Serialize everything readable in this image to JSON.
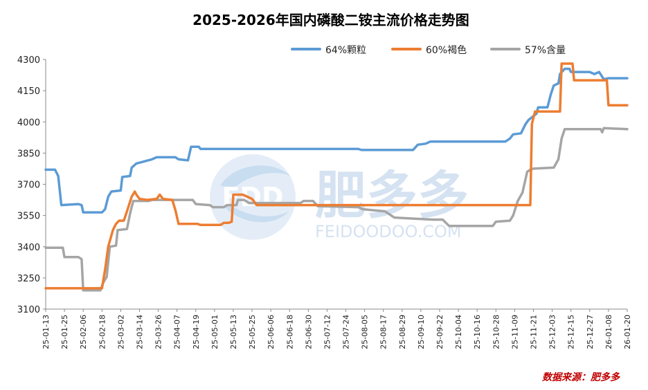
{
  "chart_data": {
    "type": "line",
    "title": "2025-2026年国内磷酸二铵主流价格走势图",
    "xlabel": "",
    "ylabel": "",
    "ylim": [
      3100,
      4300
    ],
    "yticks": [
      3100,
      3250,
      3400,
      3550,
      3700,
      3850,
      4000,
      4150,
      4300
    ],
    "x_tick_labels": [
      "25-01-13",
      "25-01-25",
      "25-02-06",
      "25-02-18",
      "25-03-02",
      "25-03-14",
      "25-03-26",
      "25-04-07",
      "25-04-19",
      "25-05-01",
      "25-05-13",
      "25-05-25",
      "25-06-06",
      "25-06-18",
      "25-06-30",
      "25-07-12",
      "25-07-24",
      "25-08-05",
      "25-08-17",
      "25-08-29",
      "25-09-10",
      "25-09-22",
      "25-10-04",
      "25-10-16",
      "25-10-28",
      "25-11-09",
      "25-11-21",
      "25-12-03",
      "25-12-15",
      "25-12-27",
      "26-01-08",
      "26-01-20"
    ],
    "legend_position": "top-right",
    "grid": false,
    "series": [
      {
        "name": "64%颗粒",
        "color": "#5B9BD5",
        "points": [
          [
            "25-01-13",
            3770
          ],
          [
            "25-01-19",
            3770
          ],
          [
            "25-01-21",
            3740
          ],
          [
            "25-01-23",
            3600
          ],
          [
            "25-02-03",
            3605
          ],
          [
            "25-02-05",
            3600
          ],
          [
            "25-02-06",
            3565
          ],
          [
            "25-02-18",
            3565
          ],
          [
            "25-02-20",
            3580
          ],
          [
            "25-02-22",
            3640
          ],
          [
            "25-02-24",
            3665
          ],
          [
            "25-03-02",
            3670
          ],
          [
            "25-03-03",
            3735
          ],
          [
            "25-03-08",
            3740
          ],
          [
            "25-03-09",
            3780
          ],
          [
            "25-03-12",
            3800
          ],
          [
            "25-03-17",
            3810
          ],
          [
            "25-03-22",
            3820
          ],
          [
            "25-03-25",
            3830
          ],
          [
            "25-04-06",
            3830
          ],
          [
            "25-04-08",
            3820
          ],
          [
            "25-04-14",
            3815
          ],
          [
            "25-04-16",
            3880
          ],
          [
            "25-04-21",
            3880
          ],
          [
            "25-04-22",
            3870
          ],
          [
            "25-08-01",
            3870
          ],
          [
            "25-08-03",
            3865
          ],
          [
            "25-09-05",
            3865
          ],
          [
            "25-09-08",
            3890
          ],
          [
            "25-09-13",
            3895
          ],
          [
            "25-09-16",
            3905
          ],
          [
            "25-11-03",
            3905
          ],
          [
            "25-11-06",
            3920
          ],
          [
            "25-11-08",
            3940
          ],
          [
            "25-11-13",
            3945
          ],
          [
            "25-11-16",
            3990
          ],
          [
            "25-11-18",
            4010
          ],
          [
            "25-11-23",
            4040
          ],
          [
            "25-11-24",
            4070
          ],
          [
            "25-11-30",
            4070
          ],
          [
            "25-12-02",
            4130
          ],
          [
            "25-12-04",
            4175
          ],
          [
            "25-12-07",
            4185
          ],
          [
            "25-12-08",
            4230
          ],
          [
            "25-12-11",
            4255
          ],
          [
            "25-12-14",
            4255
          ],
          [
            "25-12-15",
            4240
          ],
          [
            "25-12-27",
            4240
          ],
          [
            "25-12-30",
            4230
          ],
          [
            "26-01-02",
            4240
          ],
          [
            "26-01-05",
            4205
          ],
          [
            "26-01-08",
            4210
          ],
          [
            "26-01-20",
            4210
          ]
        ]
      },
      {
        "name": "60%褐色",
        "color": "#ED7D31",
        "points": [
          [
            "25-01-13",
            3200
          ],
          [
            "25-02-18",
            3200
          ],
          [
            "25-02-20",
            3290
          ],
          [
            "25-02-22",
            3400
          ],
          [
            "25-02-25",
            3480
          ],
          [
            "25-02-27",
            3510
          ],
          [
            "25-03-01",
            3525
          ],
          [
            "25-03-04",
            3525
          ],
          [
            "25-03-06",
            3570
          ],
          [
            "25-03-09",
            3640
          ],
          [
            "25-03-11",
            3665
          ],
          [
            "25-03-12",
            3650
          ],
          [
            "25-03-14",
            3630
          ],
          [
            "25-03-19",
            3625
          ],
          [
            "25-03-25",
            3630
          ],
          [
            "25-03-27",
            3650
          ],
          [
            "25-03-29",
            3630
          ],
          [
            "25-04-04",
            3625
          ],
          [
            "25-04-06",
            3575
          ],
          [
            "25-04-08",
            3510
          ],
          [
            "25-04-20",
            3510
          ],
          [
            "25-04-22",
            3505
          ],
          [
            "25-05-05",
            3505
          ],
          [
            "25-05-07",
            3515
          ],
          [
            "25-05-10",
            3515
          ],
          [
            "25-05-12",
            3520
          ],
          [
            "25-05-13",
            3650
          ],
          [
            "25-05-19",
            3650
          ],
          [
            "25-05-22",
            3640
          ],
          [
            "25-05-25",
            3630
          ],
          [
            "25-05-28",
            3600
          ],
          [
            "25-11-19",
            3600
          ],
          [
            "25-11-20",
            3990
          ],
          [
            "25-11-22",
            4050
          ],
          [
            "25-12-08",
            4050
          ],
          [
            "25-12-09",
            4280
          ],
          [
            "25-12-16",
            4280
          ],
          [
            "25-12-17",
            4200
          ],
          [
            "26-01-07",
            4200
          ],
          [
            "26-01-08",
            4080
          ],
          [
            "26-01-20",
            4080
          ]
        ]
      },
      {
        "name": "57%含量",
        "color": "#A5A5A5",
        "points": [
          [
            "25-01-13",
            3395
          ],
          [
            "25-01-24",
            3395
          ],
          [
            "25-01-25",
            3350
          ],
          [
            "25-02-03",
            3350
          ],
          [
            "25-02-05",
            3340
          ],
          [
            "25-02-06",
            3190
          ],
          [
            "25-02-17",
            3190
          ],
          [
            "25-02-19",
            3230
          ],
          [
            "25-02-21",
            3255
          ],
          [
            "25-02-23",
            3400
          ],
          [
            "25-02-27",
            3405
          ],
          [
            "25-02-28",
            3480
          ],
          [
            "25-03-06",
            3485
          ],
          [
            "25-03-08",
            3560
          ],
          [
            "25-03-10",
            3620
          ],
          [
            "25-03-20",
            3620
          ],
          [
            "25-03-22",
            3625
          ],
          [
            "25-04-17",
            3625
          ],
          [
            "25-04-19",
            3605
          ],
          [
            "25-04-28",
            3600
          ],
          [
            "25-04-30",
            3590
          ],
          [
            "25-05-07",
            3590
          ],
          [
            "25-05-09",
            3600
          ],
          [
            "25-05-15",
            3600
          ],
          [
            "25-05-16",
            3625
          ],
          [
            "25-05-20",
            3625
          ],
          [
            "25-05-23",
            3610
          ],
          [
            "25-06-25",
            3610
          ],
          [
            "25-06-27",
            3620
          ],
          [
            "25-07-03",
            3620
          ],
          [
            "25-07-06",
            3595
          ],
          [
            "25-08-01",
            3590
          ],
          [
            "25-08-04",
            3580
          ],
          [
            "25-08-18",
            3570
          ],
          [
            "25-08-24",
            3540
          ],
          [
            "25-09-05",
            3535
          ],
          [
            "25-09-18",
            3530
          ],
          [
            "25-09-24",
            3530
          ],
          [
            "25-09-28",
            3500
          ],
          [
            "25-10-12",
            3500
          ],
          [
            "25-10-14",
            3500
          ],
          [
            "25-10-26",
            3500
          ],
          [
            "25-10-28",
            3520
          ],
          [
            "25-11-06",
            3525
          ],
          [
            "25-11-08",
            3550
          ],
          [
            "25-11-11",
            3620
          ],
          [
            "25-11-14",
            3660
          ],
          [
            "25-11-17",
            3760
          ],
          [
            "25-11-19",
            3770
          ],
          [
            "25-11-21",
            3775
          ],
          [
            "25-12-04",
            3780
          ],
          [
            "25-12-07",
            3820
          ],
          [
            "25-12-09",
            3920
          ],
          [
            "25-12-11",
            3965
          ],
          [
            "26-01-03",
            3965
          ],
          [
            "26-01-04",
            3950
          ],
          [
            "26-01-05",
            3970
          ],
          [
            "26-01-20",
            3965
          ]
        ]
      }
    ]
  },
  "watermark": {
    "logo_letters": "FDD",
    "brand_cn": "肥多多",
    "domain": "FEIDOODOO.COM"
  },
  "source": "数据来源：肥多多"
}
